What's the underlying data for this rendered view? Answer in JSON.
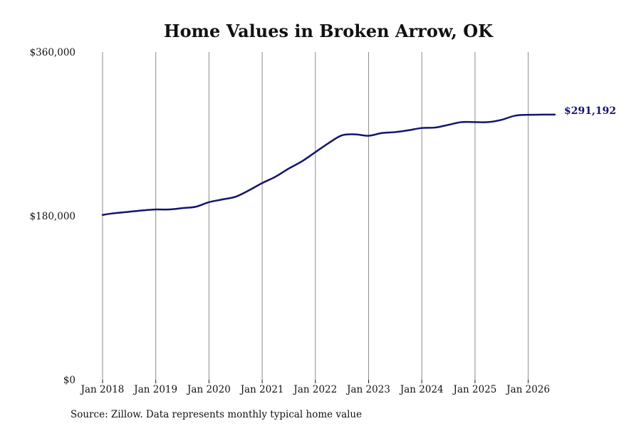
{
  "colors": {
    "line": "#14146e",
    "grid": "#8c8c8c",
    "text": "#111111",
    "background": "#ffffff"
  },
  "chart_data": {
    "type": "line",
    "title": "Home Values in Broken Arrow, OK",
    "xlabel": "",
    "ylabel": "",
    "source": "Source: Zillow. Data represents monthly typical home value",
    "x_ticks": [
      "Jan 2018",
      "Jan 2019",
      "Jan 2020",
      "Jan 2021",
      "Jan 2022",
      "Jan 2023",
      "Jan 2024",
      "Jan 2025",
      "Jan 2026"
    ],
    "y_ticks": [
      "$0",
      "$180,000",
      "$360,000"
    ],
    "ylim": [
      0,
      360000
    ],
    "xlim": [
      "2018-01",
      "2026-07"
    ],
    "grid": "vertical",
    "legend": "none",
    "end_label": "$291,192",
    "series": [
      {
        "x": [
          "2018-01",
          "2018-03",
          "2018-06",
          "2018-09",
          "2019-01",
          "2019-04",
          "2019-07",
          "2019-10",
          "2020-01",
          "2020-04",
          "2020-07",
          "2020-10",
          "2021-01",
          "2021-04",
          "2021-07",
          "2021-10",
          "2022-01",
          "2022-04",
          "2022-07",
          "2022-10",
          "2023-01",
          "2023-04",
          "2023-07",
          "2023-10",
          "2024-01",
          "2024-04",
          "2024-07",
          "2024-10",
          "2025-01",
          "2025-04",
          "2025-07",
          "2025-10",
          "2026-01",
          "2026-04",
          "2026-07"
        ],
        "values": [
          181000,
          182500,
          184000,
          185500,
          187000,
          187000,
          188500,
          190000,
          195000,
          198000,
          201000,
          208000,
          216000,
          223000,
          232000,
          240000,
          250000,
          260000,
          268500,
          269500,
          268000,
          271000,
          272000,
          274000,
          276500,
          277000,
          280000,
          283000,
          283000,
          283000,
          285500,
          290000,
          291000,
          291192,
          291192
        ]
      }
    ]
  }
}
